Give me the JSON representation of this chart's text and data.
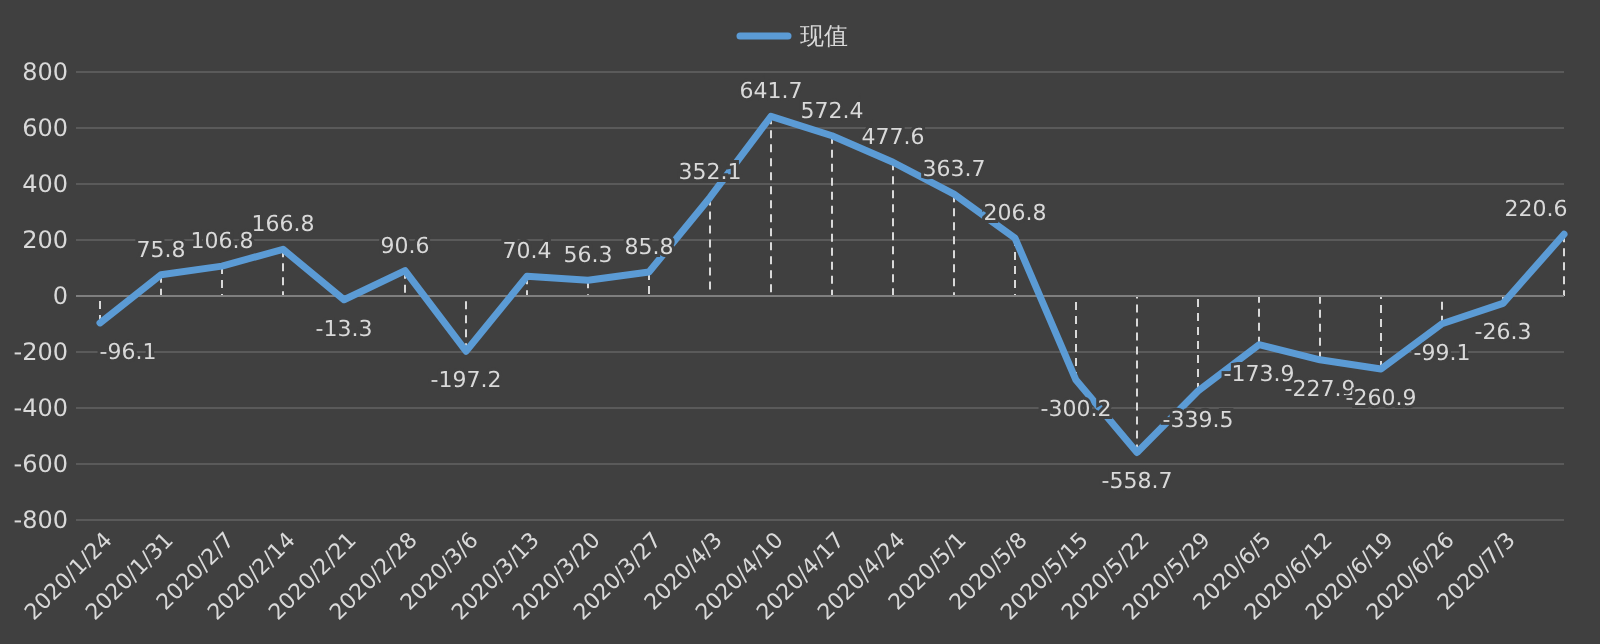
{
  "chart_data": {
    "type": "line",
    "categories": [
      "2020/1/24",
      "2020/1/31",
      "2020/2/7",
      "2020/2/14",
      "2020/2/21",
      "2020/2/28",
      "2020/3/6",
      "2020/3/13",
      "2020/3/20",
      "2020/3/27",
      "2020/4/3",
      "2020/4/10",
      "2020/4/17",
      "2020/4/24",
      "2020/5/1",
      "2020/5/8",
      "2020/5/15",
      "2020/5/22",
      "2020/5/29",
      "2020/6/5",
      "2020/6/12",
      "2020/6/19",
      "2020/6/26",
      "2020/7/3",
      null
    ],
    "series": [
      {
        "name": "现值",
        "color": "#5b9bd5",
        "values": [
          -96.1,
          75.8,
          106.8,
          166.8,
          -13.3,
          90.6,
          -197.2,
          70.4,
          56.3,
          85.8,
          352.1,
          641.7,
          572.4,
          477.6,
          363.7,
          206.8,
          -300.2,
          -558.7,
          -339.5,
          -173.9,
          -227.9,
          -260.9,
          -99.1,
          -26.3,
          220.6
        ]
      }
    ],
    "ylim": [
      -800,
      800
    ],
    "yticks": [
      -800,
      -600,
      -400,
      -200,
      0,
      200,
      400,
      600,
      800
    ],
    "grid": "y",
    "legend": "top",
    "data_labels": true,
    "marker": "none",
    "line_style": "solid"
  }
}
